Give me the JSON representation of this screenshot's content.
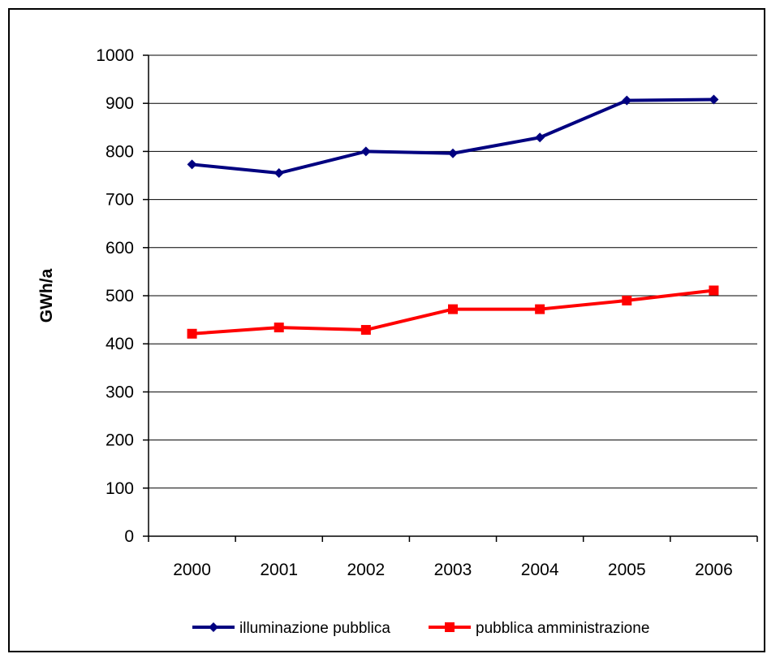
{
  "chart_data": {
    "type": "line",
    "title": "",
    "xlabel": "",
    "ylabel": "GWh/a",
    "categories": [
      "2000",
      "2001",
      "2002",
      "2003",
      "2004",
      "2005",
      "2006"
    ],
    "ylim": [
      0,
      1000
    ],
    "yticks": [
      0,
      100,
      200,
      300,
      400,
      500,
      600,
      700,
      800,
      900,
      1000
    ],
    "grid": true,
    "legend_position": "bottom",
    "series": [
      {
        "name": "illuminazione pubblica",
        "color": "#000080",
        "marker": "diamond",
        "values": [
          773,
          755,
          800,
          796,
          829,
          906,
          908
        ]
      },
      {
        "name": "pubblica amministrazione",
        "color": "#ff0000",
        "marker": "square",
        "values": [
          421,
          434,
          429,
          472,
          472,
          490,
          511
        ]
      }
    ]
  }
}
